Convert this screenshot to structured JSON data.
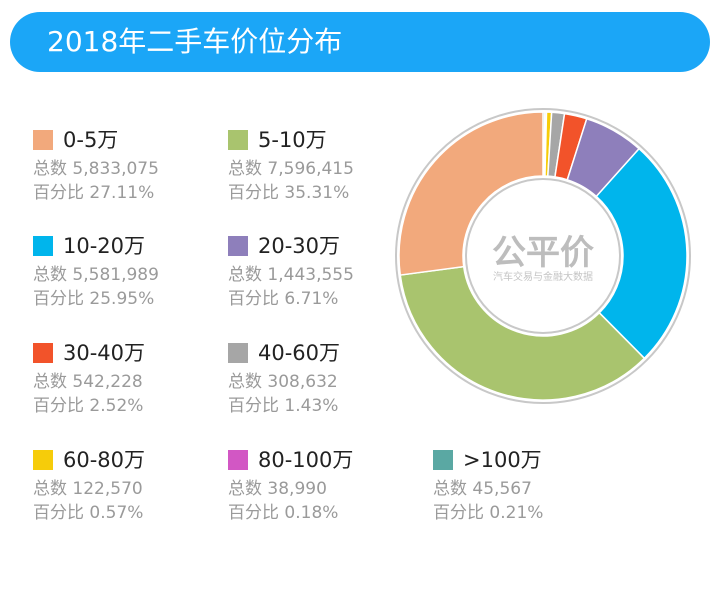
{
  "chart_data": {
    "type": "pie",
    "title": "2018年二手车价位分布",
    "count_label": "总数",
    "percent_label": "百分比",
    "watermark": "公平价 汽车交易与金融大数据",
    "categories": [
      "0-5万",
      "5-10万",
      "10-20万",
      "20-30万",
      "30-40万",
      "40-60万",
      "60-80万",
      "80-100万",
      ">100万"
    ],
    "counts": [
      "5,833,075",
      "7,596,415",
      "5,581,989",
      "1,443,555",
      "542,228",
      "308,632",
      "122,570",
      "38,990",
      "45,567"
    ],
    "percents": [
      "27.11%",
      "35.31%",
      "25.95%",
      "6.71%",
      "2.52%",
      "1.43%",
      "0.57%",
      "0.18%",
      "0.21%"
    ],
    "values": [
      27.11,
      35.31,
      25.95,
      6.71,
      2.52,
      1.43,
      0.57,
      0.18,
      0.21
    ],
    "colors": [
      "#f2a97c",
      "#a9c46e",
      "#00b5ec",
      "#8e7fbb",
      "#f2532a",
      "#a6a6a6",
      "#f6cc0a",
      "#d257c4",
      "#5aa8a3"
    ],
    "donut": true,
    "clockwise_from_top_order": [
      8,
      7,
      6,
      5,
      4,
      3,
      2,
      1,
      0
    ]
  }
}
